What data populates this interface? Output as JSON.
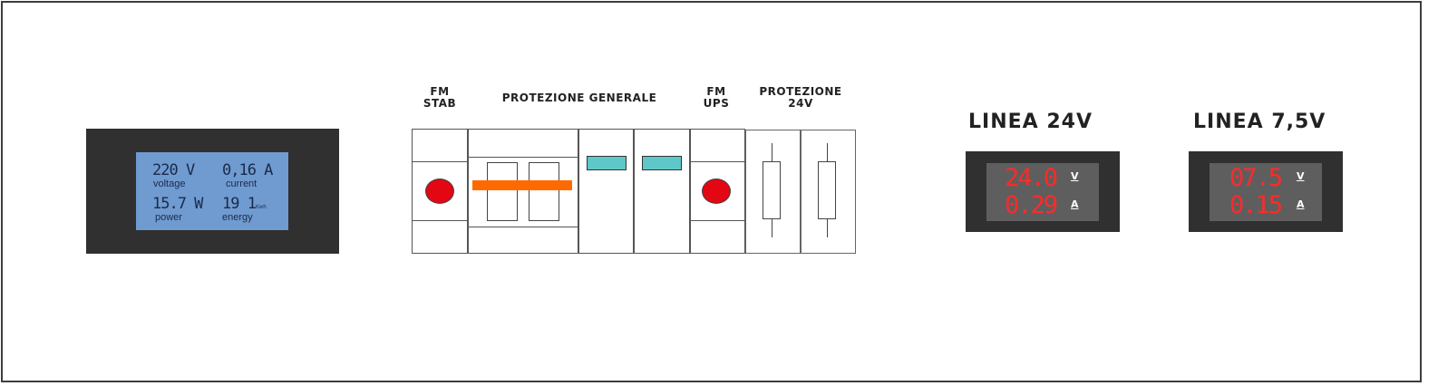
{
  "energy_meter": {
    "voltage_value": "220 V",
    "voltage_label": "voltage",
    "current_value": "0,16 A",
    "current_label": "current",
    "power_value": "15.7 W",
    "power_label": "power",
    "energy_value": "19 1",
    "energy_unit": "Kwh",
    "energy_label": "energy"
  },
  "labels": {
    "fm_stab": [
      "FM",
      "STAB"
    ],
    "protezione_generale": "PROTEZIONE GENERALE",
    "fm_ups": [
      "FM",
      "UPS"
    ],
    "protezione_24v": [
      "PROTEZIONE",
      "24V"
    ]
  },
  "panel_meters": [
    {
      "title": "LINEA 24V",
      "voltage": "24.0",
      "voltage_unit": "V",
      "current": "0.29",
      "current_unit": "A"
    },
    {
      "title": "LINEA 7,5V",
      "voltage": "07.5",
      "voltage_unit": "V",
      "current": "0.15",
      "current_unit": "A"
    }
  ],
  "colors": {
    "indicator_red": "#e30613",
    "breaker_orange": "#ff6a00",
    "teal_window": "#5ec7c7",
    "lcd_blue": "#6f9bd1",
    "led_red": "#ff2a2a"
  }
}
